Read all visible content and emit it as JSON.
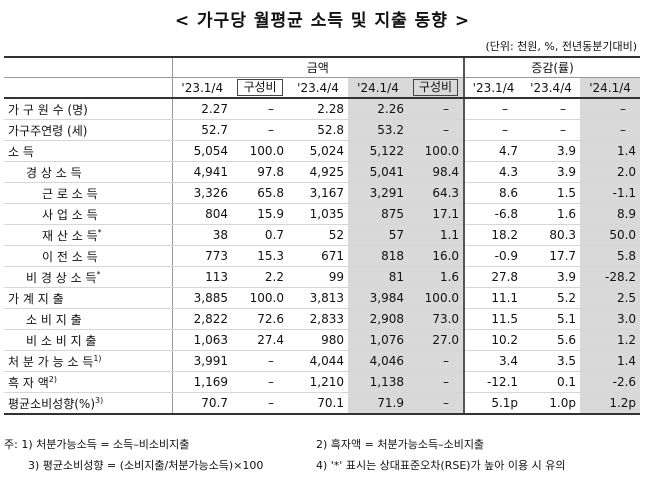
{
  "title": "< 가구당 월평균 소득 및 지출 동향 >",
  "unit": "(단위: 천원, %, 전년동분기대비)",
  "header": {
    "amount_group": "금액",
    "change_group": "증감(률)",
    "cols": [
      "'23.1/4",
      "구성비",
      "'23.4/4",
      "'24.1/4",
      "구성비",
      "'23.1/4",
      "'23.4/4",
      "'24.1/4"
    ]
  },
  "rows": [
    {
      "label": "가 구 원 수 (명)",
      "vals": [
        "2.27",
        "–",
        "2.28",
        "2.26",
        "–",
        "–",
        "–",
        "–"
      ]
    },
    {
      "label": "가구주연령 (세)",
      "vals": [
        "52.7",
        "–",
        "52.8",
        "53.2",
        "–",
        "–",
        "–",
        "–"
      ]
    },
    {
      "label": "소 득",
      "vals": [
        "5,054",
        "100.0",
        "5,024",
        "5,122",
        "100.0",
        "4.7",
        "3.9",
        "1.4"
      ]
    },
    {
      "label": "경 상 소 득",
      "vals": [
        "4,941",
        "97.8",
        "4,925",
        "5,041",
        "98.4",
        "4.3",
        "3.9",
        "2.0"
      ]
    },
    {
      "label": "근 로 소 득",
      "vals": [
        "3,326",
        "65.8",
        "3,167",
        "3,291",
        "64.3",
        "8.6",
        "1.5",
        "-1.1"
      ]
    },
    {
      "label": "사 업 소 득",
      "vals": [
        "804",
        "15.9",
        "1,035",
        "875",
        "17.1",
        "-6.8",
        "1.6",
        "8.9"
      ]
    },
    {
      "label": "재 산 소 득",
      "mark": "*",
      "vals": [
        "38",
        "0.7",
        "52",
        "57",
        "1.1",
        "18.2",
        "80.3",
        "50.0"
      ]
    },
    {
      "label": "이 전 소 득",
      "vals": [
        "773",
        "15.3",
        "671",
        "818",
        "16.0",
        "-0.9",
        "17.7",
        "5.8"
      ]
    },
    {
      "label": "비 경 상 소 득",
      "mark": "*",
      "vals": [
        "113",
        "2.2",
        "99",
        "81",
        "1.6",
        "27.8",
        "3.9",
        "-28.2"
      ]
    },
    {
      "label": "가 계 지 출",
      "vals": [
        "3,885",
        "100.0",
        "3,813",
        "3,984",
        "100.0",
        "11.1",
        "5.2",
        "2.5"
      ]
    },
    {
      "label": "소 비 지 출",
      "vals": [
        "2,822",
        "72.6",
        "2,833",
        "2,908",
        "73.0",
        "11.5",
        "5.1",
        "3.0"
      ]
    },
    {
      "label": "비 소 비 지 출",
      "vals": [
        "1,063",
        "27.4",
        "980",
        "1,076",
        "27.0",
        "10.2",
        "5.6",
        "1.2"
      ]
    },
    {
      "label": "처 분 가 능 소 득",
      "mark": "1)",
      "vals": [
        "3,991",
        "–",
        "4,044",
        "4,046",
        "–",
        "3.4",
        "3.5",
        "1.4"
      ]
    },
    {
      "label": "흑 자 액",
      "mark": "2)",
      "vals": [
        "1,169",
        "–",
        "1,210",
        "1,138",
        "–",
        "-12.1",
        "0.1",
        "-2.6"
      ]
    },
    {
      "label": "평균소비성향(%)",
      "mark": "3)",
      "vals": [
        "70.7",
        "–",
        "70.1",
        "71.9",
        "–",
        "5.1p",
        "1.0p",
        "1.2p"
      ]
    }
  ],
  "notes": {
    "n1": "주: 1) 처분가능소득 = 소득–비소비지출",
    "n2": "2) 흑자액 = 처분가능소득–소비지출",
    "n3": "3) 평균소비성향 = (소비지출/처분가능소득)×100",
    "n4": "4) '*' 표시는 상대표준오차(RSE)가 높아 이용 시 유의"
  }
}
